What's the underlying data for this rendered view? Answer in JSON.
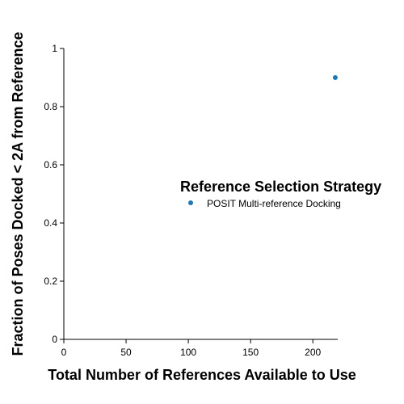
{
  "chart_data": {
    "type": "scatter",
    "xlabel": "Total Number of References Available to Use",
    "ylabel": "Fraction of Poses Docked < 2A from Reference",
    "xlim": [
      0,
      220
    ],
    "ylim": [
      0,
      1
    ],
    "x_ticks": [
      0,
      50,
      100,
      150,
      200
    ],
    "y_ticks": [
      0,
      0.2,
      0.4,
      0.6,
      0.8,
      1
    ],
    "x_tick_labels": [
      "0",
      "50",
      "100",
      "150",
      "200"
    ],
    "y_tick_labels": [
      "0",
      "0.2",
      "0.4",
      "0.6",
      "0.8",
      "1"
    ],
    "grid": false,
    "legend": {
      "title": "Reference Selection Strategy",
      "placement": "center-right",
      "entries": [
        "POSIT Multi-reference Docking"
      ]
    },
    "series": [
      {
        "name": "POSIT Multi-reference Docking",
        "color": "#1f77b4",
        "points": [
          {
            "x": 218,
            "y": 0.9
          }
        ]
      }
    ]
  }
}
